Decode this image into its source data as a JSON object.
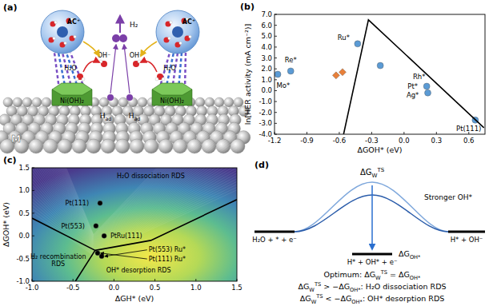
{
  "panel_labels": [
    "(a)",
    "(b)",
    "(c)",
    "(d)"
  ],
  "diagram_a": {
    "cation_labels": [
      "AC⁺",
      "AC⁺"
    ],
    "water_labels": [
      "H₂O",
      "H₂O"
    ],
    "hydroxide_labels": [
      "OH⁻",
      "OH⁻"
    ],
    "hydrogen_label": "H₂",
    "adsorbed_labels": [
      [
        {
          "t": "H"
        },
        {
          "sub": "ad"
        }
      ],
      [
        {
          "t": "H"
        },
        {
          "sub": "ad"
        }
      ]
    ],
    "hydroxide_layer_labels": [
      "Ni(OH)₂",
      "Ni(OH)₂"
    ],
    "metal_label": "M"
  },
  "chart_data": [
    {
      "type": "scatter",
      "x_label": "ΔGOH* (eV)",
      "y_label": "ln[HER activity (mA cm⁻²)]",
      "xlim": [
        -1.2,
        0.75
      ],
      "ylim": [
        -4,
        7
      ],
      "xticks": [
        -1.2,
        -0.9,
        -0.6,
        -0.3,
        {
          "value": 0,
          "label": "0.0"
        },
        0.3,
        0.6
      ],
      "yticks": [
        {
          "value": -4,
          "label": "-4.0"
        },
        {
          "value": -3,
          "label": "-3.0"
        },
        {
          "value": -2,
          "label": "-2.0"
        },
        {
          "value": -1,
          "label": "-1.0"
        },
        {
          "value": 0,
          "label": "0.0"
        },
        {
          "value": 1,
          "label": "1.0"
        },
        {
          "value": 2,
          "label": "2.0"
        },
        {
          "value": 3,
          "label": "3.0"
        },
        {
          "value": 4,
          "label": "4.0"
        },
        {
          "value": 5,
          "label": "5.0"
        },
        {
          "value": 6,
          "label": "6.0"
        },
        {
          "value": 7,
          "label": "7.0"
        }
      ],
      "series": [
        {
          "type": "scatter",
          "marker": "circle",
          "color": "#5b9bd5",
          "x": [
            -1.17,
            -1.05,
            -0.43,
            -0.22,
            0.21,
            0.22,
            0.66
          ],
          "values": [
            1.5,
            1.8,
            4.3,
            2.3,
            0.4,
            -0.2,
            -2.7
          ]
        },
        {
          "type": "scatter",
          "marker": "diamond",
          "color": "#e8803a",
          "x": [
            -0.63,
            -0.57
          ],
          "values": [
            1.4,
            1.7
          ]
        },
        {
          "type": "line",
          "color": "#000000",
          "x": [
            -0.56,
            -0.33,
            0.74
          ],
          "values": [
            -4,
            6.5,
            -3.4
          ]
        }
      ],
      "annotations": [
        {
          "text": "Mo*",
          "x": -1.12,
          "y": 0.5
        },
        {
          "text": "Re*",
          "x": -1.05,
          "y": 2.8
        },
        {
          "text": "Ru*",
          "x": -0.56,
          "y": 4.9
        },
        {
          "text": "Rh*",
          "x": 0.14,
          "y": 1.3
        },
        {
          "text": "Pt*",
          "x": 0.08,
          "y": 0.4
        },
        {
          "text": "Ag*",
          "x": 0.08,
          "y": -0.4
        },
        {
          "text": "Pt(111)",
          "x": 0.6,
          "y": -3.5
        }
      ]
    },
    {
      "type": "scatter",
      "x_label": "ΔGH* (eV)",
      "y_label": "ΔGOH* (eV)",
      "xlim": [
        -1,
        1.5
      ],
      "ylim": [
        -1,
        1.5
      ],
      "xticks": [
        {
          "value": -1,
          "label": "-1.0"
        },
        -0.5,
        {
          "value": 0,
          "label": "0.0"
        },
        0.5,
        {
          "value": 1,
          "label": "1.0"
        },
        1.5
      ],
      "yticks": [
        {
          "value": -1,
          "label": "-1.0"
        },
        -0.5,
        {
          "value": 0,
          "label": "0.0"
        },
        0.5,
        {
          "value": 1,
          "label": "1.0"
        },
        1.5
      ],
      "series": [
        {
          "type": "line",
          "color": "#000000",
          "x": [
            -1,
            -0.23
          ],
          "values": [
            0.39,
            -0.32
          ]
        },
        {
          "type": "line",
          "color": "#000000",
          "x": [
            -0.23,
            -0.47
          ],
          "values": [
            -0.32,
            -1
          ]
        },
        {
          "type": "line",
          "color": "#000000",
          "x": [
            -0.23,
            0.45,
            1.5
          ],
          "values": [
            -0.32,
            -0.1,
            0.8
          ]
        },
        {
          "type": "scatter",
          "marker": "circle",
          "color": "#000000",
          "x": [
            -0.17,
            -0.22,
            -0.12,
            -0.2,
            -0.15
          ],
          "values": [
            0.72,
            0.22,
            0.0,
            -0.38,
            -0.45
          ]
        }
      ],
      "annotations": [
        {
          "text": "H₂O dissociation RDS",
          "x": 0.45,
          "y": 1.33
        },
        {
          "text": "H₂ recombination",
          "x": -0.68,
          "y": -0.45
        },
        {
          "text": "RDS",
          "x": -0.68,
          "y": -0.62
        },
        {
          "text": "OH* desorption RDS",
          "x": 0.3,
          "y": -0.75
        },
        {
          "text": "Pt(111)",
          "x": -0.45,
          "y": 0.72
        },
        {
          "text": "Pt(553)",
          "x": -0.5,
          "y": 0.22
        },
        {
          "text": "PtRu(111)",
          "x": 0.15,
          "y": 0.0
        },
        {
          "text": "Pt(553) Ru*",
          "x": 0.65,
          "y": -0.3
        },
        {
          "text": "Pt(111) Ru*",
          "x": 0.65,
          "y": -0.5
        }
      ]
    }
  ],
  "diagram_d": {
    "barrier_label": [
      {
        "t": "ΔG"
      },
      {
        "sub": "W",
        "sup": "TS"
      }
    ],
    "initial_state": "H₂O + * + e⁻",
    "intermediate_state": "H* + OH* + e⁻",
    "final_state": "H* + OH⁻",
    "intermediate_label": [
      {
        "t": "ΔG"
      },
      {
        "sub": "OH*"
      }
    ],
    "curve_label": "Stronger OH*",
    "conditions": [
      [
        {
          "t": "Optimum: ΔG"
        },
        {
          "sub": "W",
          "sup": "TS"
        },
        {
          "t": " = ΔG"
        },
        {
          "sub": "OH*"
        }
      ],
      [
        {
          "t": "ΔG"
        },
        {
          "sub": "W",
          "sup": "TS"
        },
        {
          "t": " > −ΔG"
        },
        {
          "sub": "OH*"
        },
        {
          "t": ": H₂O dissociation RDS"
        }
      ],
      [
        {
          "t": "ΔG"
        },
        {
          "sub": "W",
          "sup": "TS"
        },
        {
          "t": " < −ΔG"
        },
        {
          "sub": "OH*"
        },
        {
          "t": ": OH* desorption RDS"
        }
      ]
    ]
  }
}
